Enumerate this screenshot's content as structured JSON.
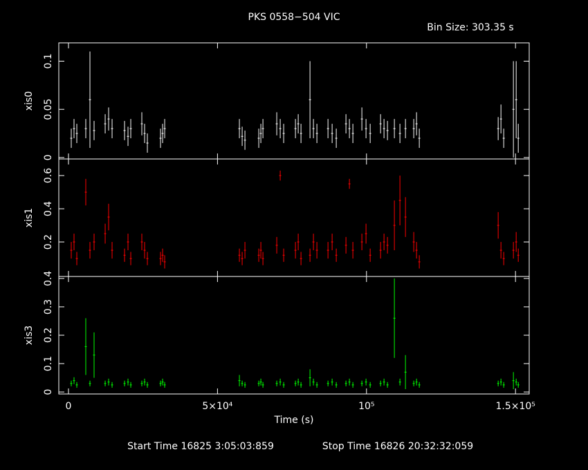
{
  "title": "PKS 0558−504 VIC",
  "bin_size": "Bin Size: 303.35 s",
  "start_time": "Start Time 16825  3:05:03:859",
  "stop_time": "Stop Time 16826 20:32:32:059",
  "chart_data": [
    {
      "type": "errorbar",
      "ylabel": "xis0",
      "color": "#ffffff",
      "xlim": [
        -3250,
        154600
      ],
      "xticks": [
        0,
        {
          "value": 50000,
          "label": "5×10⁴"
        },
        {
          "value": 100000,
          "label": "10⁵"
        },
        {
          "value": 150000,
          "label": "1.5×10⁵"
        }
      ],
      "ylim": [
        -0.0015,
        0.119
      ],
      "yticks": [
        0,
        0.05,
        0.1
      ],
      "x": [
        930,
        1860,
        2790,
        5800,
        7200,
        8590,
        12310,
        13470,
        14630,
        18810,
        19970,
        20900,
        24610,
        25540,
        26470,
        30880,
        31580,
        32280,
        57350,
        58280,
        59210,
        63850,
        64550,
        65250,
        69890,
        71050,
        72210,
        76160,
        77090,
        78020,
        81040,
        82200,
        83360,
        87080,
        88470,
        89860,
        93110,
        94270,
        95430,
        98450,
        99840,
        101240,
        104720,
        105880,
        107040,
        109360,
        111220,
        113080,
        115860,
        116790,
        117720,
        144190,
        145120,
        146050,
        149300,
        150230,
        150930
      ],
      "values": [
        0.02,
        0.03,
        0.025,
        0.03,
        0.06,
        0.028,
        0.035,
        0.04,
        0.03,
        0.028,
        0.022,
        0.03,
        0.035,
        0.025,
        0.015,
        0.02,
        0.025,
        0.03,
        0.03,
        0.022,
        0.018,
        0.02,
        0.025,
        0.03,
        0.035,
        0.03,
        0.025,
        0.03,
        0.035,
        0.025,
        0.06,
        0.03,
        0.025,
        0.03,
        0.025,
        0.02,
        0.035,
        0.03,
        0.025,
        0.04,
        0.03,
        0.025,
        0.035,
        0.03,
        0.028,
        0.03,
        0.025,
        0.03,
        0.03,
        0.035,
        0.02,
        0.03,
        0.04,
        0.02,
        0.05,
        0.06,
        0.02
      ],
      "errors": [
        0.01,
        0.01,
        0.01,
        0.01,
        0.05,
        0.01,
        0.01,
        0.012,
        0.01,
        0.01,
        0.01,
        0.01,
        0.012,
        0.01,
        0.01,
        0.01,
        0.01,
        0.01,
        0.01,
        0.01,
        0.01,
        0.01,
        0.01,
        0.01,
        0.012,
        0.01,
        0.01,
        0.01,
        0.01,
        0.01,
        0.04,
        0.01,
        0.01,
        0.01,
        0.01,
        0.01,
        0.01,
        0.01,
        0.01,
        0.012,
        0.01,
        0.01,
        0.01,
        0.01,
        0.01,
        0.01,
        0.01,
        0.01,
        0.01,
        0.012,
        0.01,
        0.012,
        0.015,
        0.01,
        0.05,
        0.04,
        0.015
      ]
    },
    {
      "type": "errorbar",
      "ylabel": "xis1",
      "color": "#ff0000",
      "xlim": [
        -3250,
        154600
      ],
      "xticks": [
        0,
        {
          "value": 50000,
          "label": "5×10⁴"
        },
        {
          "value": 100000,
          "label": "10⁵"
        },
        {
          "value": 150000,
          "label": "1.5×10⁵"
        }
      ],
      "ylim": [
        -0.008,
        0.7
      ],
      "yticks": [
        0.2,
        0.4,
        0.6
      ],
      "x": [
        930,
        1860,
        2790,
        5800,
        7200,
        8590,
        12310,
        13470,
        14630,
        18810,
        19970,
        20900,
        24610,
        25540,
        26470,
        30880,
        31580,
        32280,
        57350,
        58280,
        59210,
        63850,
        64550,
        65250,
        69890,
        71050,
        72210,
        76160,
        77090,
        78020,
        81040,
        82200,
        83360,
        87080,
        88470,
        89860,
        93110,
        94270,
        95430,
        98450,
        99840,
        101240,
        104720,
        105880,
        107040,
        109360,
        111220,
        113080,
        115860,
        116790,
        117720,
        144190,
        145120,
        146050,
        149300,
        150230,
        150930
      ],
      "values": [
        0.15,
        0.2,
        0.1,
        0.5,
        0.15,
        0.2,
        0.25,
        0.35,
        0.15,
        0.12,
        0.2,
        0.1,
        0.2,
        0.15,
        0.1,
        0.1,
        0.12,
        0.08,
        0.12,
        0.1,
        0.15,
        0.12,
        0.15,
        0.1,
        0.18,
        0.6,
        0.12,
        0.15,
        0.2,
        0.1,
        0.12,
        0.2,
        0.15,
        0.15,
        0.2,
        0.12,
        0.18,
        0.55,
        0.15,
        0.2,
        0.25,
        0.12,
        0.15,
        0.2,
        0.18,
        0.3,
        0.45,
        0.35,
        0.2,
        0.15,
        0.08,
        0.3,
        0.15,
        0.1,
        0.15,
        0.2,
        0.12
      ],
      "errors": [
        0.05,
        0.05,
        0.04,
        0.08,
        0.05,
        0.05,
        0.06,
        0.08,
        0.05,
        0.04,
        0.05,
        0.04,
        0.05,
        0.05,
        0.04,
        0.04,
        0.04,
        0.04,
        0.04,
        0.04,
        0.05,
        0.04,
        0.05,
        0.04,
        0.05,
        0.03,
        0.04,
        0.05,
        0.05,
        0.04,
        0.04,
        0.05,
        0.05,
        0.05,
        0.05,
        0.04,
        0.05,
        0.03,
        0.05,
        0.05,
        0.06,
        0.04,
        0.05,
        0.05,
        0.05,
        0.15,
        0.15,
        0.12,
        0.06,
        0.05,
        0.04,
        0.08,
        0.05,
        0.04,
        0.05,
        0.06,
        0.04
      ]
    },
    {
      "type": "errorbar",
      "ylabel": "xis3",
      "xlabel": "Time (s)",
      "color": "#00ff00",
      "xlim": [
        -3250,
        154600
      ],
      "xticks": [
        0,
        {
          "value": 50000,
          "label": "5×10⁴"
        },
        {
          "value": 100000,
          "label": "10⁵"
        },
        {
          "value": 150000,
          "label": "1.5×10⁵"
        }
      ],
      "ylim": [
        -0.007,
        0.407
      ],
      "yticks": [
        0,
        0.1,
        0.2,
        0.3,
        0.4
      ],
      "x": [
        930,
        1860,
        2790,
        5800,
        7200,
        8590,
        12310,
        13470,
        14630,
        18810,
        19970,
        20900,
        24610,
        25540,
        26470,
        30880,
        31580,
        32280,
        57350,
        58280,
        59210,
        63850,
        64550,
        65250,
        69890,
        71050,
        72210,
        76160,
        77090,
        78020,
        81040,
        82200,
        83360,
        87080,
        88470,
        89860,
        93110,
        94270,
        95430,
        98450,
        99840,
        101240,
        104720,
        105880,
        107040,
        109360,
        111220,
        113080,
        115860,
        116790,
        117720,
        144190,
        145120,
        146050,
        149300,
        150230,
        150930
      ],
      "values": [
        0.03,
        0.04,
        0.025,
        0.16,
        0.03,
        0.13,
        0.03,
        0.035,
        0.025,
        0.03,
        0.035,
        0.025,
        0.03,
        0.035,
        0.025,
        0.03,
        0.035,
        0.025,
        0.04,
        0.03,
        0.025,
        0.03,
        0.035,
        0.025,
        0.03,
        0.035,
        0.025,
        0.03,
        0.035,
        0.025,
        0.05,
        0.035,
        0.025,
        0.03,
        0.035,
        0.025,
        0.03,
        0.035,
        0.025,
        0.03,
        0.035,
        0.025,
        0.03,
        0.035,
        0.025,
        0.26,
        0.035,
        0.07,
        0.03,
        0.035,
        0.025,
        0.03,
        0.035,
        0.025,
        0.04,
        0.035,
        0.025
      ],
      "errors": [
        0.01,
        0.012,
        0.01,
        0.1,
        0.01,
        0.08,
        0.01,
        0.012,
        0.01,
        0.01,
        0.012,
        0.01,
        0.01,
        0.012,
        0.01,
        0.01,
        0.012,
        0.01,
        0.02,
        0.01,
        0.01,
        0.01,
        0.012,
        0.01,
        0.01,
        0.012,
        0.01,
        0.01,
        0.012,
        0.01,
        0.03,
        0.012,
        0.01,
        0.01,
        0.012,
        0.01,
        0.01,
        0.012,
        0.01,
        0.01,
        0.012,
        0.01,
        0.01,
        0.012,
        0.01,
        0.14,
        0.012,
        0.06,
        0.01,
        0.012,
        0.01,
        0.01,
        0.012,
        0.01,
        0.03,
        0.012,
        0.01
      ]
    }
  ]
}
